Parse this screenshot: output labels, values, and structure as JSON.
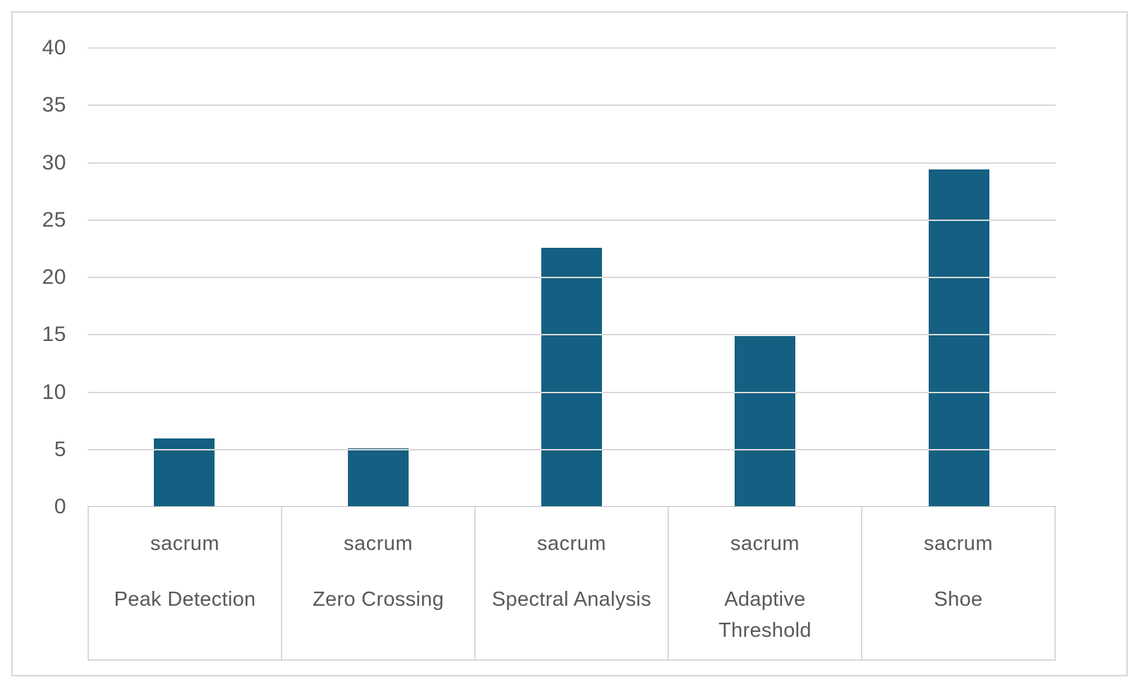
{
  "figure": {
    "background": "#ffffff",
    "border_color": "#d6d6d6"
  },
  "chart_data": {
    "type": "bar",
    "title": "",
    "xlabel": "",
    "ylabel": "",
    "categories": [
      {
        "line1": "sacrum",
        "line2": "Peak Detection"
      },
      {
        "line1": "sacrum",
        "line2": "Zero Crossing"
      },
      {
        "line1": "sacrum",
        "line2": "Spectral Analysis"
      },
      {
        "line1": "sacrum",
        "line2": "Adaptive Threshold"
      },
      {
        "line1": "sacrum",
        "line2": "Shoe"
      }
    ],
    "values": [
      6.0,
      5.1,
      22.6,
      14.9,
      29.4
    ],
    "ylim": [
      0,
      40
    ],
    "yticks": [
      0,
      5,
      10,
      15,
      20,
      25,
      30,
      35,
      40
    ],
    "bar_color": "#156082",
    "gridline_color": "#d9d9d9",
    "axis_text_color": "#595959",
    "grid": true,
    "legend_position": "none"
  }
}
